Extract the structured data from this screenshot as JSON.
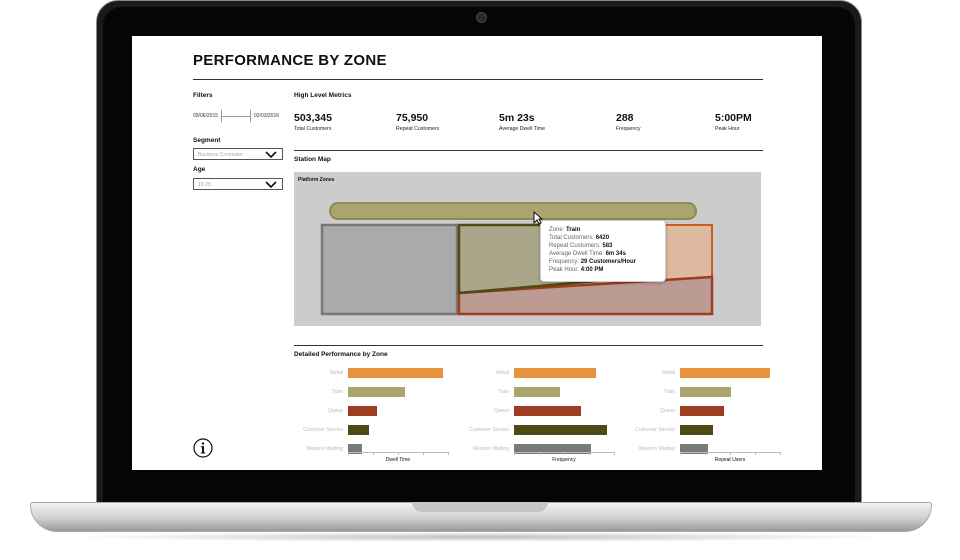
{
  "page": {
    "title": "PERFORMANCE BY ZONE"
  },
  "filters": {
    "label": "Filters",
    "date_start": "09/06/2015",
    "date_end": "02/03/2016",
    "segment": {
      "label": "Segment",
      "value": "Business Commuter"
    },
    "age": {
      "label": "Age",
      "value": "19-25"
    }
  },
  "metrics": {
    "label": "High Level Metrics",
    "items": [
      {
        "value": "503,345",
        "label": "Total Customers"
      },
      {
        "value": "75,950",
        "label": "Repeat Customers"
      },
      {
        "value": "5m 23s",
        "label": "Average Dwell Time"
      },
      {
        "value": "288",
        "label": "Frequency"
      },
      {
        "value": "5:00PM",
        "label": "Peak Hour"
      }
    ]
  },
  "station_map": {
    "label": "Station Map",
    "sublabel": "Platform Zones",
    "tooltip": {
      "zone_label": "Zone:",
      "zone_value": "Train",
      "total_label": "Total Customers:",
      "total_value": "6420",
      "repeat_label": "Repeat Customers:",
      "repeat_value": "583",
      "dwell_label": "Average Dwell Time:",
      "dwell_value": "6m 34s",
      "freq_label": "Frequency:",
      "freq_value": "29 Customers/Hour",
      "peak_label": "Peak Hour:",
      "peak_value": "4:00 PM"
    }
  },
  "colors": {
    "retail": "#e8923e",
    "train": "#aaa46e",
    "queue": "#9e3d20",
    "customer_service": "#4d4a13",
    "western_waiting": "#7a7a7a"
  },
  "chart_data": {
    "title": "Detailed Performance by Zone",
    "type": "bar",
    "orientation": "horizontal",
    "categories": [
      "Retail",
      "Train",
      "Queue",
      "Customer Service",
      "Western Waiting"
    ],
    "charts": [
      {
        "xlabel": "Dwell Time",
        "values": [
          95,
          57,
          29,
          21,
          14
        ]
      },
      {
        "xlabel": "Frequency",
        "values": [
          82,
          46,
          67,
          93,
          77
        ]
      },
      {
        "xlabel": "Repeat Users",
        "values": [
          90,
          51,
          44,
          33,
          28
        ]
      }
    ]
  }
}
